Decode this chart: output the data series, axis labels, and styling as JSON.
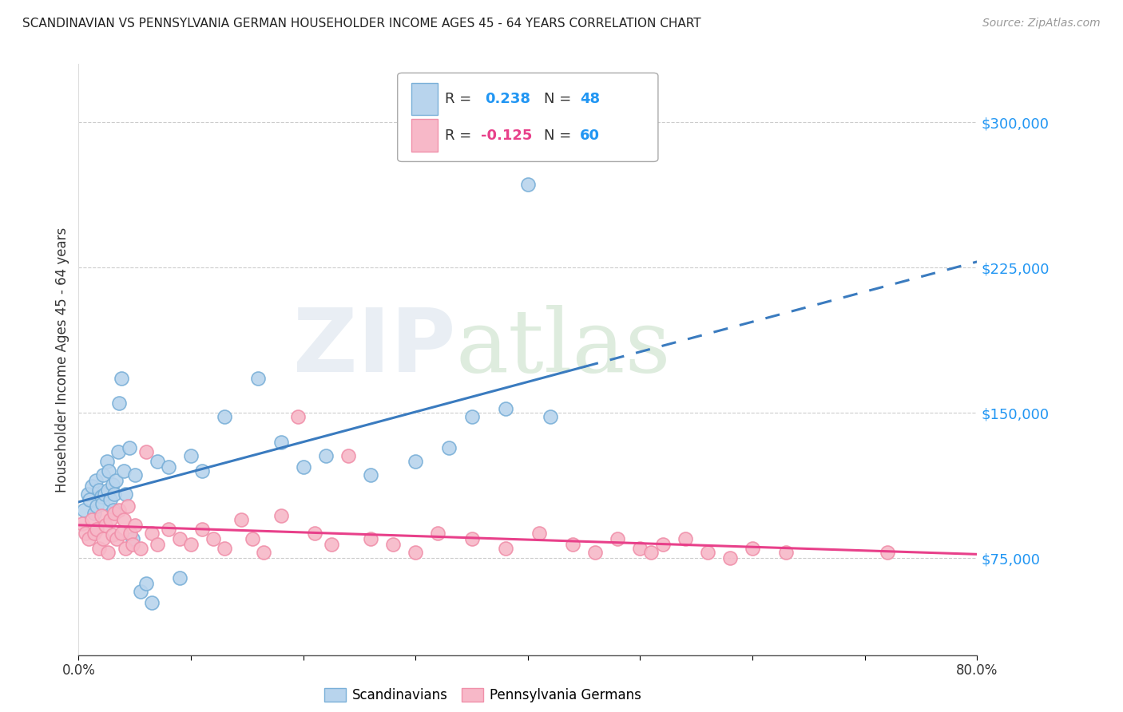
{
  "title": "SCANDINAVIAN VS PENNSYLVANIA GERMAN HOUSEHOLDER INCOME AGES 45 - 64 YEARS CORRELATION CHART",
  "source": "Source: ZipAtlas.com",
  "ylabel": "Householder Income Ages 45 - 64 years",
  "xlim": [
    0.0,
    0.8
  ],
  "ylim": [
    25000,
    330000
  ],
  "yticks": [
    75000,
    150000,
    225000,
    300000
  ],
  "ytick_labels": [
    "$75,000",
    "$150,000",
    "$225,000",
    "$300,000"
  ],
  "xticks": [
    0.0,
    0.1,
    0.2,
    0.3,
    0.4,
    0.5,
    0.6,
    0.7,
    0.8
  ],
  "xtick_labels": [
    "0.0%",
    "",
    "",
    "",
    "",
    "",
    "",
    "",
    "80.0%"
  ],
  "blue_dot_fill": "#b8d4ed",
  "blue_dot_edge": "#7ab0d8",
  "pink_dot_fill": "#f7b8c8",
  "pink_dot_edge": "#f090aa",
  "blue_line_color": "#3a7bbf",
  "pink_line_color": "#e8408a",
  "scand_x": [
    0.005,
    0.008,
    0.01,
    0.012,
    0.014,
    0.015,
    0.016,
    0.018,
    0.02,
    0.021,
    0.022,
    0.023,
    0.025,
    0.026,
    0.027,
    0.028,
    0.03,
    0.031,
    0.032,
    0.033,
    0.035,
    0.036,
    0.038,
    0.04,
    0.042,
    0.045,
    0.048,
    0.05,
    0.055,
    0.06,
    0.065,
    0.07,
    0.08,
    0.09,
    0.1,
    0.11,
    0.13,
    0.16,
    0.18,
    0.2,
    0.22,
    0.26,
    0.3,
    0.33,
    0.35,
    0.38,
    0.4,
    0.42
  ],
  "scand_y": [
    100000,
    108000,
    105000,
    112000,
    98000,
    115000,
    102000,
    110000,
    107000,
    103000,
    118000,
    108000,
    125000,
    110000,
    120000,
    105000,
    113000,
    100000,
    108000,
    115000,
    130000,
    155000,
    168000,
    120000,
    108000,
    132000,
    85000,
    118000,
    58000,
    62000,
    52000,
    125000,
    122000,
    65000,
    128000,
    120000,
    148000,
    168000,
    135000,
    122000,
    128000,
    118000,
    125000,
    132000,
    148000,
    152000,
    268000,
    148000
  ],
  "pagerm_x": [
    0.003,
    0.006,
    0.009,
    0.012,
    0.014,
    0.016,
    0.018,
    0.02,
    0.022,
    0.024,
    0.026,
    0.028,
    0.03,
    0.032,
    0.034,
    0.036,
    0.038,
    0.04,
    0.042,
    0.044,
    0.046,
    0.048,
    0.05,
    0.055,
    0.06,
    0.065,
    0.07,
    0.08,
    0.09,
    0.1,
    0.11,
    0.12,
    0.13,
    0.145,
    0.155,
    0.165,
    0.18,
    0.195,
    0.21,
    0.225,
    0.24,
    0.26,
    0.28,
    0.3,
    0.32,
    0.35,
    0.38,
    0.41,
    0.44,
    0.46,
    0.48,
    0.5,
    0.51,
    0.52,
    0.54,
    0.56,
    0.58,
    0.6,
    0.63,
    0.72
  ],
  "pagerm_y": [
    93000,
    88000,
    85000,
    95000,
    88000,
    90000,
    80000,
    97000,
    85000,
    92000,
    78000,
    95000,
    87000,
    98000,
    85000,
    100000,
    88000,
    95000,
    80000,
    102000,
    88000,
    82000,
    92000,
    80000,
    130000,
    88000,
    82000,
    90000,
    85000,
    82000,
    90000,
    85000,
    80000,
    95000,
    85000,
    78000,
    97000,
    148000,
    88000,
    82000,
    128000,
    85000,
    82000,
    78000,
    88000,
    85000,
    80000,
    88000,
    82000,
    78000,
    85000,
    80000,
    78000,
    82000,
    85000,
    78000,
    75000,
    80000,
    78000,
    78000
  ]
}
